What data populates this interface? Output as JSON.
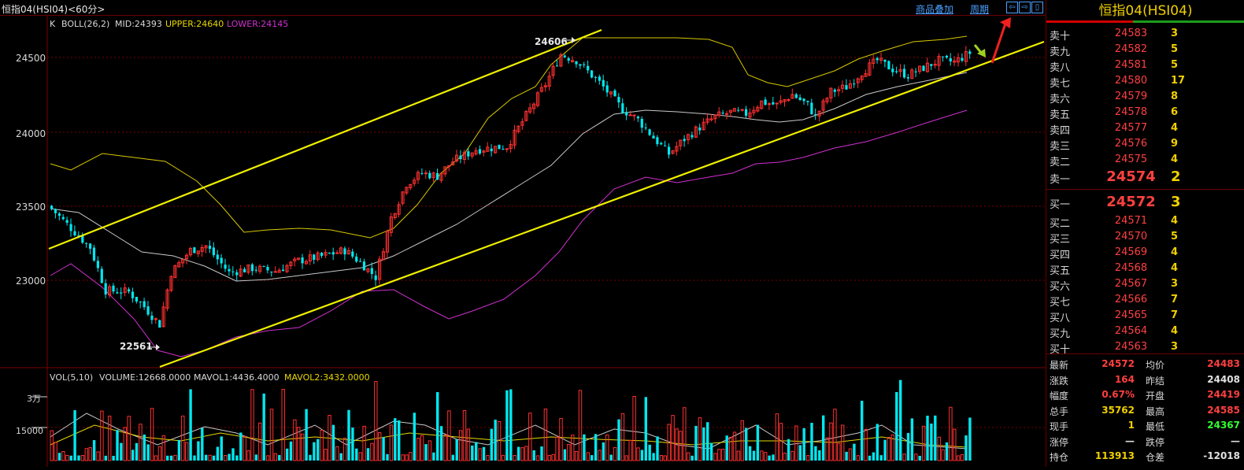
{
  "window": {
    "title": "恒指04(HSI04)<60分>",
    "overlay_link": "商品叠加",
    "period_link": "周期"
  },
  "nav": [
    "⇦",
    "⇨",
    "▯"
  ],
  "indicator": {
    "k_label": "K",
    "boll_name": "BOLL(26,2)",
    "mid": "MID:24393",
    "upper": "UPPER:24640",
    "lower": "LOWER:24145"
  },
  "yaxis": {
    "labels": [
      "24500",
      "24000",
      "23500",
      "23000"
    ]
  },
  "annotations": {
    "high_label": "24606",
    "low_label": "22561"
  },
  "volume": {
    "label": "VOL(5,10)",
    "volume": "VOLUME:12668.0000",
    "mavol1": "MAVOL1:4436.4000",
    "mavol2": "MAVOL2:3432.0000",
    "axis": [
      "3万",
      "15000"
    ]
  },
  "colors": {
    "up": "#ff3030",
    "down": "#00e8f0",
    "boll_upper": "#d8c800",
    "boll_mid": "#c8c8c8",
    "boll_lower": "#d030d0",
    "trend": "#f0f000",
    "grid": "#7a0000"
  },
  "quote": {
    "title": "恒指04(HSI04)",
    "asks": [
      {
        "label": "卖十",
        "price": "24583",
        "vol": "3"
      },
      {
        "label": "卖九",
        "price": "24582",
        "vol": "5"
      },
      {
        "label": "卖八",
        "price": "24581",
        "vol": "5"
      },
      {
        "label": "卖七",
        "price": "24580",
        "vol": "17"
      },
      {
        "label": "卖六",
        "price": "24579",
        "vol": "8"
      },
      {
        "label": "卖五",
        "price": "24578",
        "vol": "6"
      },
      {
        "label": "卖四",
        "price": "24577",
        "vol": "4"
      },
      {
        "label": "卖三",
        "price": "24576",
        "vol": "9"
      },
      {
        "label": "卖二",
        "price": "24575",
        "vol": "4"
      },
      {
        "label": "卖一",
        "price": "24574",
        "vol": "2"
      }
    ],
    "bids": [
      {
        "label": "买一",
        "price": "24572",
        "vol": "3"
      },
      {
        "label": "买二",
        "price": "24571",
        "vol": "4"
      },
      {
        "label": "买三",
        "price": "24570",
        "vol": "5"
      },
      {
        "label": "买四",
        "price": "24569",
        "vol": "4"
      },
      {
        "label": "买五",
        "price": "24568",
        "vol": "4"
      },
      {
        "label": "买六",
        "price": "24567",
        "vol": "3"
      },
      {
        "label": "买七",
        "price": "24566",
        "vol": "7"
      },
      {
        "label": "买八",
        "price": "24565",
        "vol": "7"
      },
      {
        "label": "买九",
        "price": "24564",
        "vol": "4"
      },
      {
        "label": "买十",
        "price": "24563",
        "vol": "3"
      }
    ],
    "info": [
      {
        "l1": "最新",
        "v1": "24572",
        "c1": "red",
        "l2": "均价",
        "v2": "24483",
        "c2": "red"
      },
      {
        "l1": "涨跌",
        "v1": "164",
        "c1": "red",
        "l2": "昨结",
        "v2": "24408",
        "c2": "wht"
      },
      {
        "l1": "幅度",
        "v1": "0.67%",
        "c1": "red",
        "l2": "开盘",
        "v2": "24419",
        "c2": "red"
      },
      {
        "l1": "总手",
        "v1": "35762",
        "c1": "yel",
        "l2": "最高",
        "v2": "24585",
        "c2": "red"
      },
      {
        "l1": "现手",
        "v1": "1",
        "c1": "yel",
        "l2": "最低",
        "v2": "24367",
        "c2": "grn"
      },
      {
        "l1": "涨停",
        "v1": "—",
        "c1": "wht",
        "l2": "跌停",
        "v2": "—",
        "c2": "wht"
      },
      {
        "l1": "持仓",
        "v1": "113913",
        "c1": "yel",
        "l2": "仓差",
        "v2": "-12018",
        "c2": "wht"
      }
    ]
  }
}
